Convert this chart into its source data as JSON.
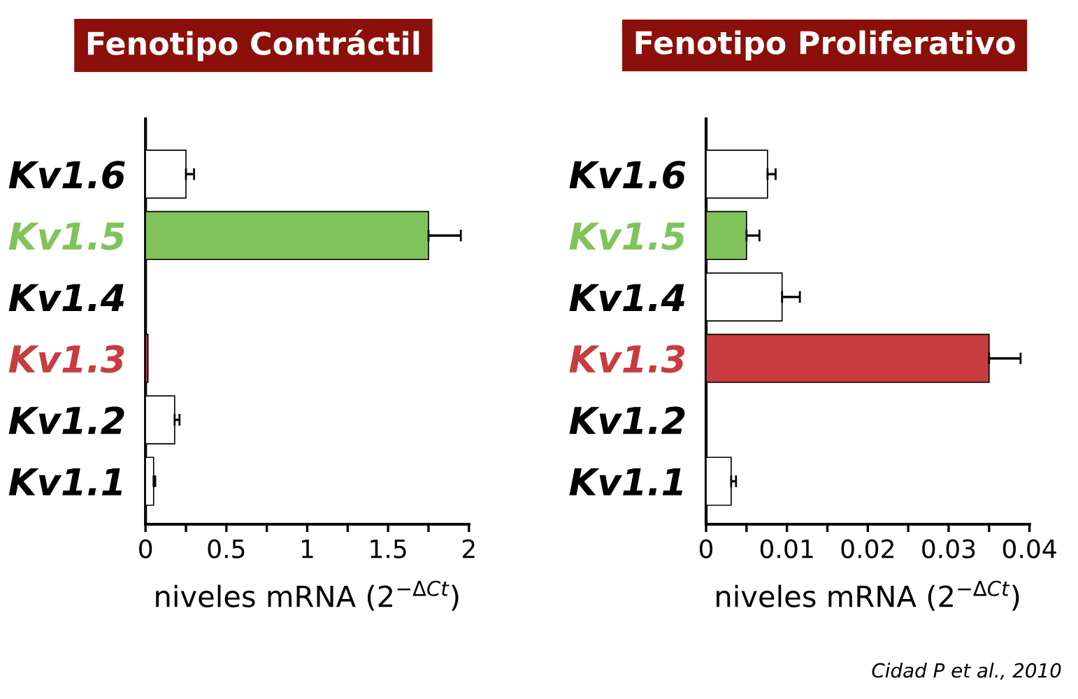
{
  "chart_data": [
    {
      "type": "bar",
      "orientation": "horizontal",
      "title": "Fenotipo Contráctil",
      "xlabel": "niveles mRNA (2$^{−ΔCt}$)",
      "categories": [
        "Kv1.6",
        "Kv1.5",
        "Kv1.4",
        "Kv1.3",
        "Kv1.2",
        "Kv1.1"
      ],
      "values": [
        0.25,
        1.75,
        null,
        0.015,
        0.18,
        0.05
      ],
      "errors": [
        0.05,
        0.2,
        null,
        null,
        0.03,
        0.01
      ],
      "colors": [
        "#ffffff",
        "#80c35a",
        "#ffffff",
        "#c83c40",
        "#ffffff",
        "#ffffff"
      ],
      "xlim": [
        0,
        2
      ],
      "xticks": [
        0,
        {
          "value": 0.25,
          "label": null
        },
        0.5,
        {
          "value": 0.75,
          "label": null
        },
        1,
        {
          "value": 1.25,
          "label": null
        },
        1.5,
        {
          "value": 1.75,
          "label": null
        },
        2
      ],
      "grid": false,
      "legend": false
    },
    {
      "type": "bar",
      "orientation": "horizontal",
      "title": "Fenotipo Proliferativo",
      "xlabel": "niveles mRNA (2$^{−ΔCt}$)",
      "categories": [
        "Kv1.6",
        "Kv1.5",
        "Kv1.4",
        "Kv1.3",
        "Kv1.2",
        "Kv1.1"
      ],
      "values": [
        0.0076,
        0.005,
        0.0094,
        0.035,
        null,
        0.0031
      ],
      "errors": [
        0.001,
        0.0016,
        0.0022,
        0.0039,
        null,
        0.0006
      ],
      "colors": [
        "#ffffff",
        "#80c35a",
        "#ffffff",
        "#c83c40",
        "#ffffff",
        "#ffffff"
      ],
      "xlim": [
        0,
        0.04
      ],
      "xticks": [
        0,
        {
          "value": 0.005,
          "label": null
        },
        0.01,
        {
          "value": 0.015,
          "label": null
        },
        0.02,
        {
          "value": 0.025,
          "label": null
        },
        0.03,
        {
          "value": 0.035,
          "label": null
        },
        0.04
      ],
      "grid": false,
      "legend": false,
      "annotations": [
        "Cidad P et al., 2010"
      ]
    }
  ]
}
